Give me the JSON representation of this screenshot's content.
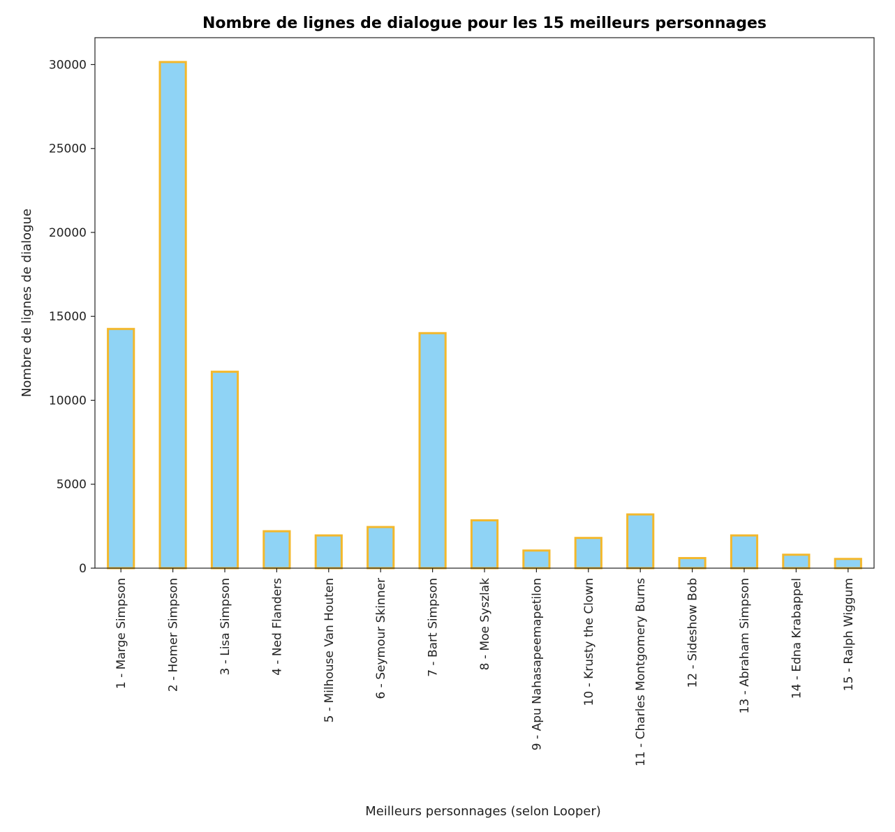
{
  "chart_data": {
    "type": "bar",
    "title": "Nombre de lignes de dialogue pour les 15 meilleurs personnages",
    "xlabel": "Meilleurs personnages (selon Looper)",
    "ylabel": "Nombre de lignes de dialogue",
    "categories": [
      "1 - Marge Simpson",
      "2 - Homer Simpson",
      "3 - Lisa Simpson",
      "4 - Ned Flanders",
      "5 - Milhouse Van Houten",
      "6 - Seymour Skinner",
      "7 - Bart Simpson",
      "8 - Moe Syszlak",
      "9 - Apu Nahasapeemapetilon",
      "10 - Krusty the Clown",
      "11 - Charles Montgomery Burns",
      "12 - Sideshow Bob",
      "13 - Abraham Simpson",
      "14 - Edna Krabappel",
      "15 - Ralph Wiggum"
    ],
    "values": [
      14250,
      30150,
      11700,
      2200,
      1950,
      2450,
      14000,
      2850,
      1050,
      1800,
      3200,
      600,
      1950,
      800,
      550
    ],
    "yticks": [
      0,
      5000,
      10000,
      15000,
      20000,
      25000,
      30000
    ],
    "ylim": [
      0,
      31600
    ],
    "grid": false,
    "colors": {
      "bar_fill": "#8fd3f5",
      "bar_edge": "#f3b82c"
    }
  }
}
